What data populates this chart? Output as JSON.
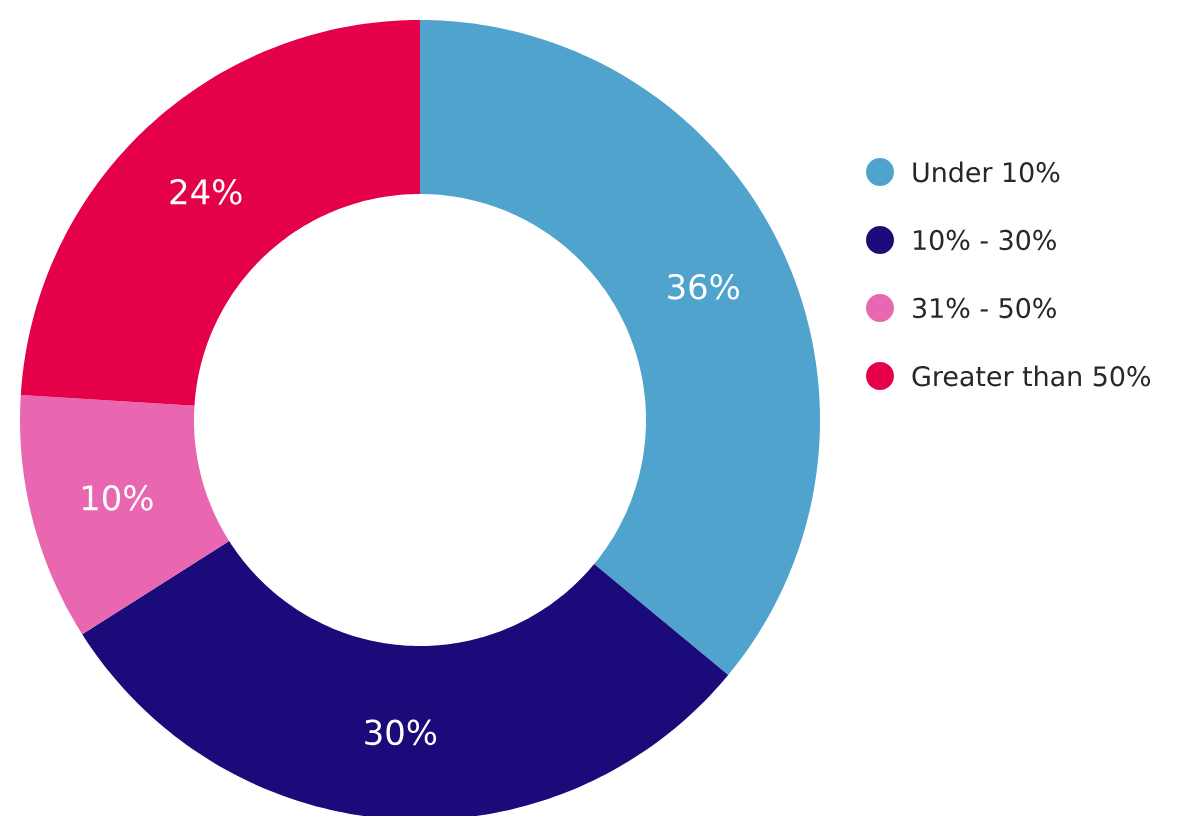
{
  "chart_data": {
    "type": "donut",
    "categories": [
      "Under 10%",
      "10% - 30%",
      "31% - 50%",
      "Greater than 50%"
    ],
    "values": [
      36,
      30,
      10,
      24
    ],
    "value_labels": [
      "36%",
      "30%",
      "10%",
      "24%"
    ],
    "colors": [
      "#4fa3cc",
      "#1b0a7a",
      "#e867b0",
      "#e5004a"
    ],
    "legend": "right"
  }
}
